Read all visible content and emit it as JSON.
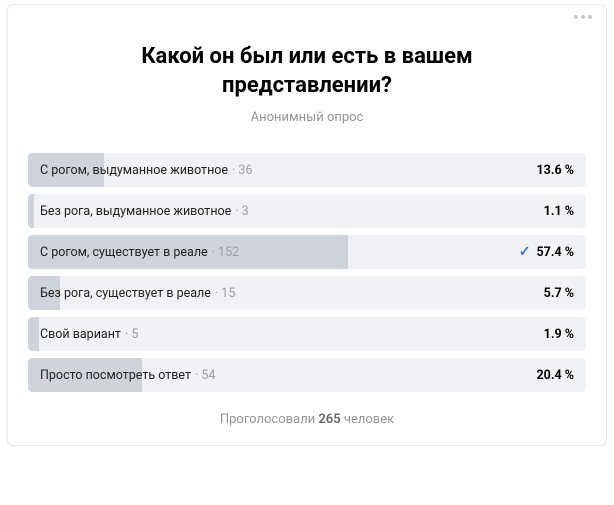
{
  "poll": {
    "title": "Какой он был или есть в вашем представлении?",
    "subtitle": "Анонимный опрос",
    "footer_prefix": "Проголосовали ",
    "footer_count": "265",
    "footer_suffix": " человек",
    "track_bg": "#f0f2f5",
    "fill_color": "#cfd4db",
    "check_color": "#3f72c0",
    "options": [
      {
        "label": "С рогом, выдуманное животное",
        "count": "36",
        "pct": "13.6 %",
        "fill_width": "13.6%",
        "checked": false
      },
      {
        "label": "Без рога, выдуманное животное",
        "count": "3",
        "pct": "1.1 %",
        "fill_width": "1.1%",
        "checked": false
      },
      {
        "label": "С рогом, существует в реале",
        "count": "152",
        "pct": "57.4 %",
        "fill_width": "57.4%",
        "checked": true
      },
      {
        "label": "Без рога, существует в реале",
        "count": "15",
        "pct": "5.7 %",
        "fill_width": "5.7%",
        "checked": false
      },
      {
        "label": "Свой вариант",
        "count": "5",
        "pct": "1.9 %",
        "fill_width": "1.9%",
        "checked": false
      },
      {
        "label": "Просто посмотреть ответ",
        "count": "54",
        "pct": "20.4 %",
        "fill_width": "20.4%",
        "checked": false
      }
    ]
  }
}
